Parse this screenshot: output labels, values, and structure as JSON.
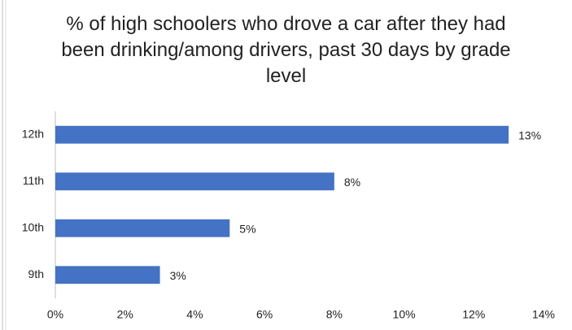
{
  "chart_data": {
    "type": "bar",
    "orientation": "horizontal",
    "title": "% of high schoolers who drove a car after they had been drinking/among drivers, past 30 days by grade level",
    "categories": [
      "12th",
      "11th",
      "10th",
      "9th"
    ],
    "values": [
      13,
      8,
      5,
      3
    ],
    "value_labels": [
      "13%",
      "8%",
      "5%",
      "3%"
    ],
    "color": "#4472c4",
    "xlim": [
      0,
      14
    ],
    "xticks": [
      {
        "value": 0,
        "label": "0%"
      },
      {
        "value": 2,
        "label": "2%"
      },
      {
        "value": 4,
        "label": "4%"
      },
      {
        "value": 6,
        "label": "6%"
      },
      {
        "value": 8,
        "label": "8%"
      },
      {
        "value": 10,
        "label": "10%"
      },
      {
        "value": 12,
        "label": "12%"
      },
      {
        "value": 14,
        "label": "14%"
      }
    ],
    "grid": false
  }
}
